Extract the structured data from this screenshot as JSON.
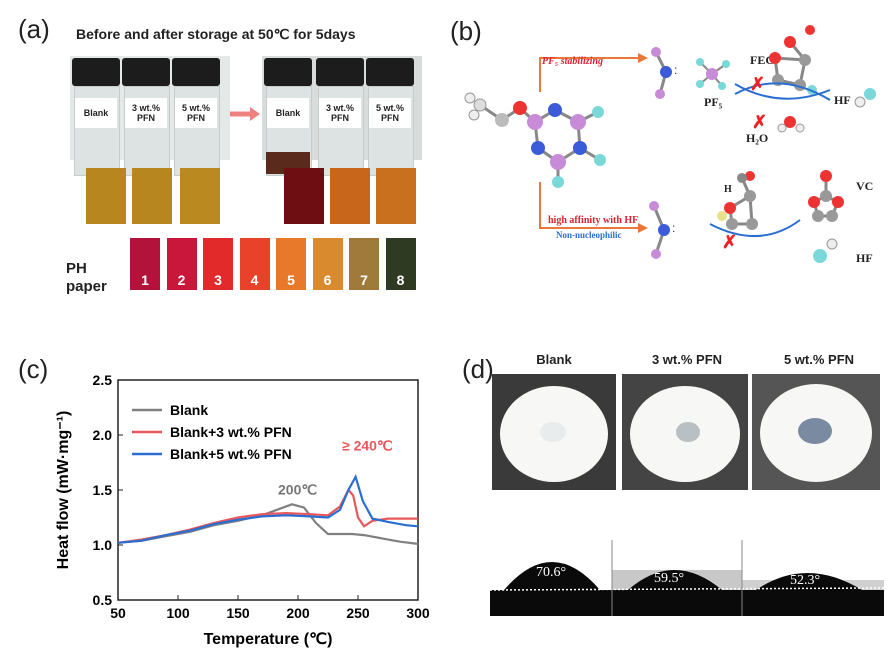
{
  "panel_a": {
    "label": "(a)",
    "title": "Before and after storage at 50℃ for 5days",
    "vials_before": [
      "Blank",
      "3 wt.%\nPFN",
      "5 wt.%\nPFN"
    ],
    "vials_after": [
      "Blank",
      "3 wt.%\nPFN",
      "5 wt.%\nPFN"
    ],
    "ph_label_line1": "PH",
    "ph_label_line2": "paper",
    "ph_scale": [
      "1",
      "2",
      "3",
      "4",
      "5",
      "6",
      "7",
      "8"
    ],
    "ph_colors": [
      "#b3123a",
      "#c8173a",
      "#e22a2a",
      "#e8432a",
      "#e8792a",
      "#d98a2e",
      "#a07a3a",
      "#2e3a22"
    ]
  },
  "panel_b": {
    "label": "(b)",
    "arrow_top": "PF₅ stabilizing",
    "arrow_bottom_1": "high affinity with HF",
    "arrow_bottom_2": "Non-nucleophilic",
    "fec": "FEC",
    "pf5": "PF₅",
    "h2o": "H₂O",
    "hf_top": "HF",
    "hf_bottom": "HF",
    "vc": "VC",
    "h": "H"
  },
  "panel_c": {
    "label": "(c)",
    "annot_200": "200℃",
    "annot_240": "≥ 240℃"
  },
  "chart_data": {
    "type": "line",
    "xlabel": "Temperature (℃)",
    "ylabel": "Heat flow (mW·mg⁻¹)",
    "xlim": [
      50,
      300
    ],
    "ylim": [
      0.5,
      2.5
    ],
    "xticks": [
      50,
      100,
      150,
      200,
      250,
      300
    ],
    "yticks": [
      0.5,
      1.0,
      1.5,
      2.0,
      2.5
    ],
    "legend": "top-left",
    "series": [
      {
        "name": "Blank",
        "color": "#808080",
        "x": [
          50,
          70,
          90,
          110,
          130,
          150,
          170,
          185,
          195,
          205,
          215,
          225,
          235,
          245,
          255,
          270,
          285,
          300
        ],
        "y": [
          1.02,
          1.04,
          1.08,
          1.12,
          1.18,
          1.22,
          1.27,
          1.33,
          1.37,
          1.34,
          1.2,
          1.1,
          1.1,
          1.1,
          1.09,
          1.06,
          1.03,
          1.01
        ]
      },
      {
        "name": "Blank+3 wt.% PFN",
        "color": "#e8575a",
        "x": [
          50,
          70,
          90,
          110,
          130,
          150,
          170,
          190,
          210,
          225,
          235,
          242,
          246,
          250,
          255,
          262,
          275,
          300
        ],
        "y": [
          1.02,
          1.05,
          1.09,
          1.14,
          1.2,
          1.25,
          1.28,
          1.29,
          1.28,
          1.27,
          1.35,
          1.5,
          1.45,
          1.25,
          1.17,
          1.22,
          1.24,
          1.24
        ]
      },
      {
        "name": "Blank+5 wt.% PFN",
        "color": "#2a6ed1",
        "x": [
          50,
          70,
          90,
          110,
          130,
          150,
          170,
          190,
          210,
          225,
          235,
          242,
          248,
          254,
          262,
          275,
          290,
          300
        ],
        "y": [
          1.02,
          1.04,
          1.09,
          1.13,
          1.19,
          1.23,
          1.26,
          1.27,
          1.26,
          1.25,
          1.32,
          1.5,
          1.62,
          1.4,
          1.24,
          1.21,
          1.18,
          1.17
        ]
      }
    ]
  },
  "panel_d": {
    "label": "(d)",
    "samples": [
      "Blank",
      "3 wt.% PFN",
      "5 wt.% PFN"
    ],
    "angles": [
      "70.6°",
      "59.5°",
      "52.3°"
    ]
  }
}
